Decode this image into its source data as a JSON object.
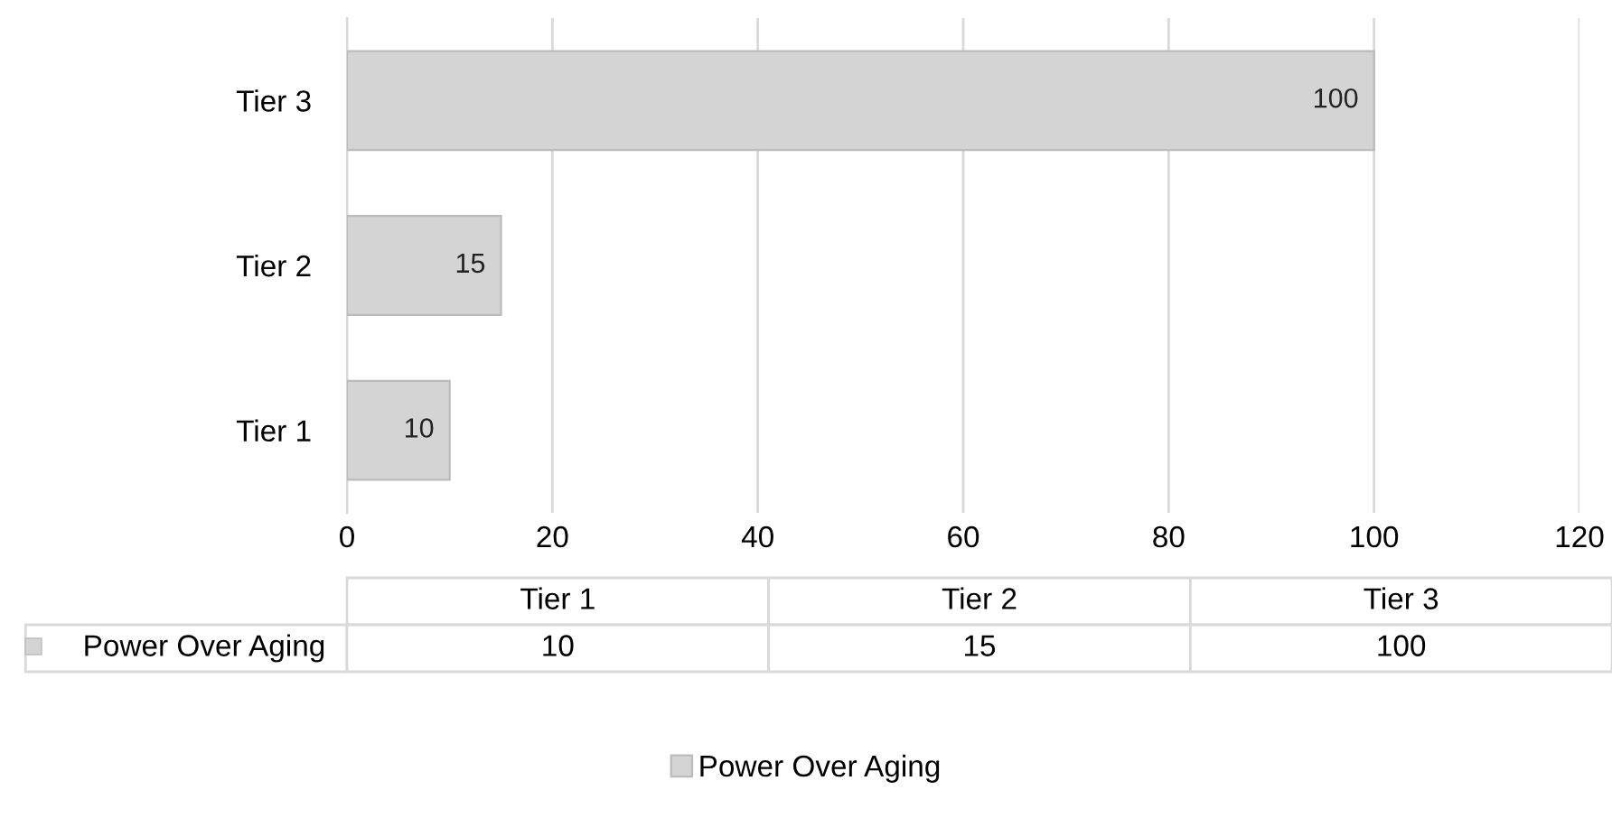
{
  "chart_data": {
    "type": "bar",
    "orientation": "horizontal",
    "categories": [
      "Tier 3",
      "Tier 2",
      "Tier 1"
    ],
    "series": [
      {
        "name": "Power Over Aging",
        "color": "#d4d4d4",
        "values": [
          100,
          15,
          10
        ],
        "value_labels": [
          "100",
          "15",
          "10"
        ]
      }
    ],
    "xlim": [
      0,
      120
    ],
    "xticks": [
      0,
      20,
      40,
      60,
      80,
      100,
      120
    ],
    "grid": "x",
    "legend": "bottom"
  }
}
